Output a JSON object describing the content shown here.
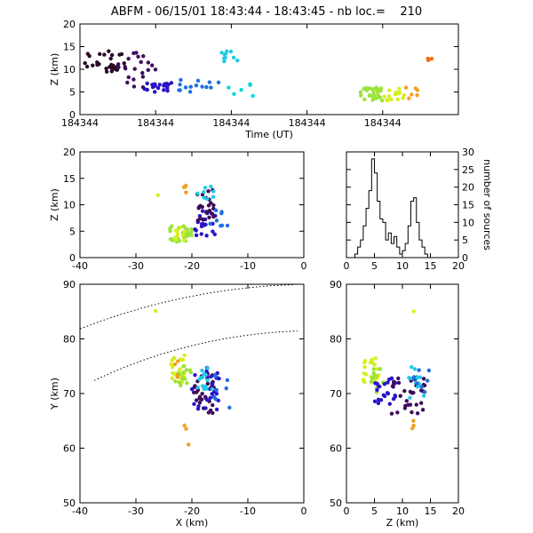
{
  "title": "ABFM - 06/15/01 18:43:44 - 18:43:45 - nb loc.=    210",
  "chart_data": [
    {
      "id": "time_z",
      "type": "scatter",
      "xlabel": "Time (UT)",
      "ylabel": "Z (km)",
      "xlim": [
        0,
        1
      ],
      "ylim": [
        0,
        20
      ],
      "x_ticks": [
        0.0,
        0.2,
        0.4,
        0.6,
        0.8
      ],
      "x_tick_labels": [
        "184344",
        "184344",
        "184344",
        "184344",
        "184344"
      ],
      "y_ticks": [
        0,
        5,
        10,
        15,
        20
      ],
      "groups": [
        {
          "color": "#2a0a28",
          "x_range": [
            0.0,
            0.12
          ],
          "y_range": [
            9,
            14
          ],
          "count": 28
        },
        {
          "color": "#3d0d5a",
          "x_range": [
            0.1,
            0.2
          ],
          "y_range": [
            6,
            14
          ],
          "count": 22
        },
        {
          "color": "#2814c8",
          "x_range": [
            0.17,
            0.26
          ],
          "y_range": [
            5,
            7
          ],
          "count": 20
        },
        {
          "color": "#1f6fe0",
          "x_range": [
            0.25,
            0.37
          ],
          "y_range": [
            5,
            8
          ],
          "count": 14
        },
        {
          "color": "#22c8e8",
          "x_range": [
            0.37,
            0.42
          ],
          "y_range": [
            11,
            14
          ],
          "count": 10
        },
        {
          "color": "#00d8d8",
          "x_range": [
            0.38,
            0.48
          ],
          "y_range": [
            4,
            8
          ],
          "count": 6
        },
        {
          "color": "#9be23a",
          "x_range": [
            0.74,
            0.8
          ],
          "y_range": [
            3,
            6
          ],
          "count": 30
        },
        {
          "color": "#d7ee1e",
          "x_range": [
            0.8,
            0.87
          ],
          "y_range": [
            3,
            6
          ],
          "count": 14
        },
        {
          "color": "#f0a020",
          "x_range": [
            0.86,
            0.9
          ],
          "y_range": [
            3,
            6
          ],
          "count": 6
        },
        {
          "color": "#f06a10",
          "x_range": [
            0.91,
            0.93
          ],
          "y_range": [
            11,
            13
          ],
          "count": 3
        }
      ]
    },
    {
      "id": "x_z",
      "type": "scatter",
      "ylabel": "Z (km)",
      "xlim": [
        -40,
        0
      ],
      "ylim": [
        0,
        20
      ],
      "x_ticks": [
        -40,
        -30,
        -20,
        -10,
        0
      ],
      "y_ticks": [
        0,
        5,
        10,
        15,
        20
      ],
      "groups": [
        {
          "color": "#9be23a",
          "x_range": [
            -24,
            -20
          ],
          "y_range": [
            3,
            6
          ],
          "count": 30
        },
        {
          "color": "#d7ee1e",
          "x_range": [
            -23,
            -21
          ],
          "y_range": [
            3,
            6
          ],
          "count": 10
        },
        {
          "color": "#2814c8",
          "x_range": [
            -19.5,
            -15.5
          ],
          "y_range": [
            4,
            9
          ],
          "count": 22
        },
        {
          "color": "#3d0d5a",
          "x_range": [
            -19.5,
            -16
          ],
          "y_range": [
            7,
            13
          ],
          "count": 24
        },
        {
          "color": "#22c8e8",
          "x_range": [
            -19,
            -16
          ],
          "y_range": [
            11,
            14
          ],
          "count": 8
        },
        {
          "color": "#1f6fe0",
          "x_range": [
            -17,
            -13
          ],
          "y_range": [
            6,
            9
          ],
          "count": 8
        },
        {
          "color": "#f0a020",
          "x_range": [
            -21.5,
            -20.5
          ],
          "y_range": [
            11,
            14
          ],
          "count": 4
        },
        {
          "color": "#d7ee1e",
          "x_range": [
            -26.5,
            -26
          ],
          "y_range": [
            11.5,
            12.5
          ],
          "count": 1
        }
      ]
    },
    {
      "id": "histogram",
      "type": "bar",
      "xlabel": "",
      "ylabel": "number of sources",
      "xlim": [
        0,
        20
      ],
      "ylim": [
        0,
        30
      ],
      "x_ticks": [
        0,
        5,
        10,
        15,
        20
      ],
      "y_ticks": [
        0,
        5,
        10,
        15,
        20,
        25,
        30
      ],
      "bin_edges": [
        1.5,
        2.0,
        2.5,
        3.0,
        3.5,
        4.0,
        4.5,
        5.0,
        5.5,
        6.0,
        6.5,
        7.0,
        7.5,
        8.0,
        8.5,
        9.0,
        9.5,
        10.0,
        10.5,
        11.0,
        11.5,
        12.0,
        12.5,
        13.0,
        13.5,
        14.0,
        14.5,
        15.0
      ],
      "values": [
        1,
        3,
        5,
        9,
        14,
        19,
        28,
        24,
        16,
        11,
        10,
        5,
        7,
        4,
        6,
        3,
        1,
        2,
        4,
        9,
        16,
        17,
        10,
        5,
        3,
        1,
        0
      ]
    },
    {
      "id": "x_y",
      "type": "scatter",
      "xlabel": "X (km)",
      "ylabel": "Y (km)",
      "xlim": [
        -40,
        0
      ],
      "ylim": [
        50,
        90
      ],
      "x_ticks": [
        -40,
        -30,
        -20,
        -10,
        0
      ],
      "y_ticks": [
        50,
        60,
        70,
        80,
        90
      ],
      "groups": [
        {
          "color": "#d7ee1e",
          "x_range": [
            -24,
            -21
          ],
          "y_range": [
            72,
            77
          ],
          "count": 22
        },
        {
          "color": "#9be23a",
          "x_range": [
            -23,
            -20
          ],
          "y_range": [
            71,
            75
          ],
          "count": 14
        },
        {
          "color": "#f0a020",
          "x_range": [
            -24,
            -22.5
          ],
          "y_range": [
            73,
            76
          ],
          "count": 4
        },
        {
          "color": "#3d0d5a",
          "x_range": [
            -20,
            -16
          ],
          "y_range": [
            66,
            74
          ],
          "count": 30
        },
        {
          "color": "#2814c8",
          "x_range": [
            -20,
            -15
          ],
          "y_range": [
            67,
            75
          ],
          "count": 24
        },
        {
          "color": "#22c8e8",
          "x_range": [
            -19,
            -16
          ],
          "y_range": [
            70,
            75
          ],
          "count": 14
        },
        {
          "color": "#1f6fe0",
          "x_range": [
            -16,
            -12
          ],
          "y_range": [
            67,
            74
          ],
          "count": 8
        },
        {
          "color": "#f0a020",
          "x_range": [
            -21.5,
            -20.5
          ],
          "y_range": [
            60,
            66
          ],
          "count": 3
        },
        {
          "color": "#d7ee1e",
          "x_range": [
            -26.5,
            -26
          ],
          "y_range": [
            84.5,
            85.5
          ],
          "count": 1
        }
      ]
    },
    {
      "id": "z_y",
      "type": "scatter",
      "xlabel": "Z (km)",
      "xlim": [
        0,
        20
      ],
      "ylim": [
        50,
        90
      ],
      "x_ticks": [
        0,
        5,
        10,
        15,
        20
      ],
      "y_ticks": [
        50,
        60,
        70,
        80,
        90
      ],
      "groups": [
        {
          "color": "#d7ee1e",
          "x_range": [
            3,
            6
          ],
          "y_range": [
            72,
            77
          ],
          "count": 22
        },
        {
          "color": "#9be23a",
          "x_range": [
            4,
            7
          ],
          "y_range": [
            70,
            75
          ],
          "count": 14
        },
        {
          "color": "#2814c8",
          "x_range": [
            5,
            9
          ],
          "y_range": [
            68,
            73
          ],
          "count": 24
        },
        {
          "color": "#3d0d5a",
          "x_range": [
            8,
            14
          ],
          "y_range": [
            66,
            73
          ],
          "count": 30
        },
        {
          "color": "#22c8e8",
          "x_range": [
            11,
            14
          ],
          "y_range": [
            69,
            75
          ],
          "count": 14
        },
        {
          "color": "#1f6fe0",
          "x_range": [
            12,
            15
          ],
          "y_range": [
            70,
            75
          ],
          "count": 8
        },
        {
          "color": "#f0a020",
          "x_range": [
            11,
            12.5
          ],
          "y_range": [
            62,
            66
          ],
          "count": 3
        },
        {
          "color": "#d7ee1e",
          "x_range": [
            11.8,
            12.2
          ],
          "y_range": [
            84.5,
            85.5
          ],
          "count": 1
        }
      ]
    }
  ]
}
